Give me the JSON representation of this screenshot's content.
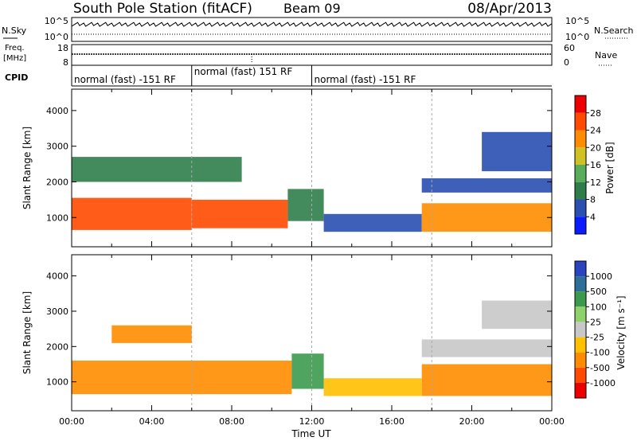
{
  "header": {
    "station": "South Pole Station (fitACF)",
    "beam": "Beam 09",
    "date": "08/Apr/2013"
  },
  "panels": {
    "nsky": {
      "left_label": "N.Sky",
      "right_label": "N.Search",
      "ticks_left": [
        "10^5",
        "10^0"
      ],
      "ticks_right": [
        "10^5",
        "10^0"
      ]
    },
    "freq": {
      "left_label_1": "Freq.",
      "left_label_2": "[MHz]",
      "right_label": "Nave",
      "ticks_left": [
        "18",
        "8"
      ],
      "ticks_right": [
        "60",
        "0"
      ]
    },
    "cpid": {
      "label": "CPID",
      "segments": [
        {
          "text": "normal (fast) -151 RF",
          "start_hour": 0,
          "end_hour": 6
        },
        {
          "text": "normal (fast) 151 RF",
          "start_hour": 6,
          "end_hour": 12
        },
        {
          "text": "normal (fast) -151 RF",
          "start_hour": 12,
          "end_hour": 24
        }
      ]
    }
  },
  "chart_data": [
    {
      "type": "heatmap",
      "name": "power",
      "xlabel": "",
      "ylabel": "Slant Range [km]",
      "xlim": [
        0,
        24
      ],
      "ylim": [
        180,
        4600
      ],
      "yticks": [
        "1000",
        "2000",
        "3000",
        "4000"
      ],
      "colorbar": {
        "label": "Power [dB]",
        "ticks": [
          "4",
          "8",
          "12",
          "16",
          "20",
          "24",
          "28"
        ],
        "colors": [
          "#0a1cff",
          "#2a4fb0",
          "#2f7d4b",
          "#57ad5a",
          "#cfc224",
          "#ff8c00",
          "#ff4a00",
          "#ee0000"
        ]
      },
      "regions": [
        {
          "start": 0.0,
          "end": 6.0,
          "range_low": 650,
          "range_high": 1550,
          "value": 26
        },
        {
          "start": 6.0,
          "end": 10.8,
          "range_low": 700,
          "range_high": 1500,
          "value": 24
        },
        {
          "start": 10.8,
          "end": 12.6,
          "range_low": 900,
          "range_high": 1800,
          "value": 10
        },
        {
          "start": 12.6,
          "end": 17.5,
          "range_low": 600,
          "range_high": 1100,
          "value": 6
        },
        {
          "start": 17.5,
          "end": 24.0,
          "range_low": 600,
          "range_high": 1400,
          "value": 20
        },
        {
          "start": 0.0,
          "end": 8.5,
          "range_low": 2000,
          "range_high": 2700,
          "value": 8
        },
        {
          "start": 17.5,
          "end": 24.0,
          "range_low": 1700,
          "range_high": 2100,
          "value": 6
        },
        {
          "start": 20.5,
          "end": 24.0,
          "range_low": 2300,
          "range_high": 3400,
          "value": 5
        }
      ]
    },
    {
      "type": "heatmap",
      "name": "velocity",
      "xlabel": "Time UT",
      "ylabel": "Slant Range [km]",
      "xlim": [
        0,
        24
      ],
      "ylim": [
        180,
        4600
      ],
      "xticks": [
        "00:00",
        "04:00",
        "08:00",
        "12:00",
        "16:00",
        "20:00",
        "00:00"
      ],
      "yticks": [
        "1000",
        "2000",
        "3000",
        "4000"
      ],
      "colorbar": {
        "label": "Velocity [m s⁻¹]",
        "ticks": [
          "1000",
          "500",
          "100",
          "25",
          "-25",
          "-100",
          "-500",
          "-1000"
        ],
        "colors": [
          "#2a44c0",
          "#2e6f98",
          "#3c9a4e",
          "#8fd26a",
          "#c8c8c8",
          "#ffc000",
          "#ff8c00",
          "#ff4a00",
          "#ee0000"
        ]
      },
      "regions": [
        {
          "start": 0.0,
          "end": 11.0,
          "range_low": 650,
          "range_high": 1600,
          "value": -300
        },
        {
          "start": 11.0,
          "end": 12.6,
          "range_low": 800,
          "range_high": 1800,
          "value": 200
        },
        {
          "start": 12.6,
          "end": 17.5,
          "range_low": 600,
          "range_high": 1100,
          "value": -100
        },
        {
          "start": 17.5,
          "end": 24.0,
          "range_low": 600,
          "range_high": 1500,
          "value": -400
        },
        {
          "start": 2.0,
          "end": 6.0,
          "range_low": 2100,
          "range_high": 2600,
          "value": -300
        },
        {
          "start": 17.5,
          "end": 24.0,
          "range_low": 1700,
          "range_high": 2200,
          "value": 0
        },
        {
          "start": 20.5,
          "end": 24.0,
          "range_low": 2500,
          "range_high": 3300,
          "value": 0
        }
      ]
    }
  ]
}
